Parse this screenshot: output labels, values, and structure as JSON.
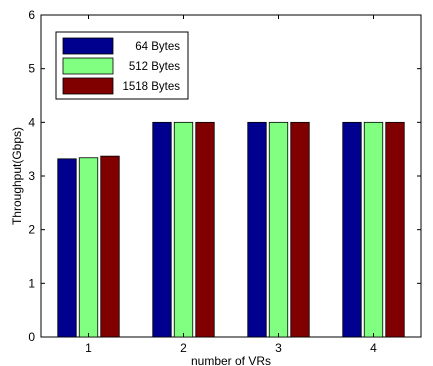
{
  "chart_data": {
    "type": "bar",
    "categories": [
      "1",
      "2",
      "3",
      "4"
    ],
    "series": [
      {
        "name": "64 Bytes",
        "color": "#00008f",
        "values": [
          3.32,
          4.0,
          4.0,
          4.0
        ]
      },
      {
        "name": "512 Bytes",
        "color": "#80ff80",
        "values": [
          3.34,
          4.0,
          4.0,
          4.0
        ]
      },
      {
        "name": "1518 Bytes",
        "color": "#800000",
        "values": [
          3.37,
          4.0,
          4.0,
          4.0
        ]
      }
    ],
    "xlabel": "number of VRs",
    "ylabel": "Throughput(Gbps)",
    "ylim": [
      0,
      6
    ],
    "yticks": [
      "0",
      "1",
      "2",
      "3",
      "4",
      "5",
      "6"
    ],
    "grid": false,
    "legend_position": "top-left"
  }
}
